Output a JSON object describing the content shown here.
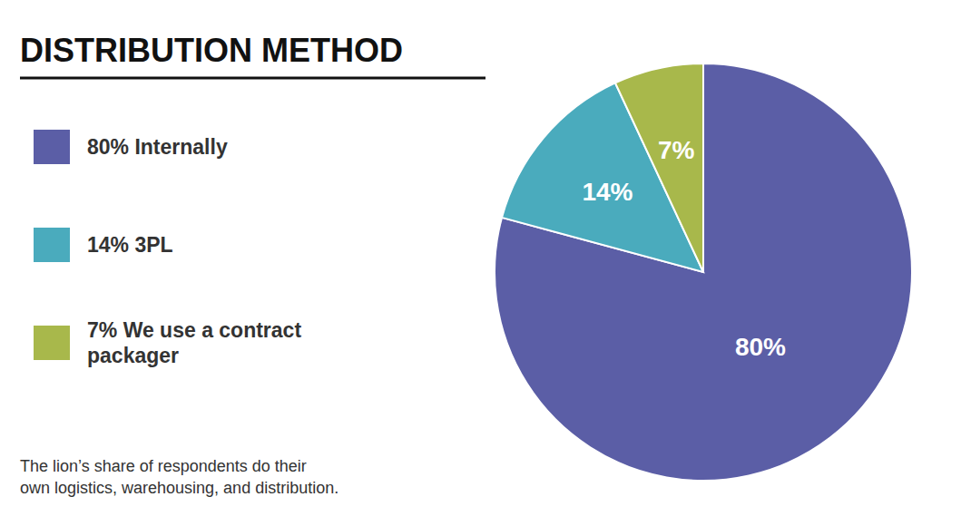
{
  "chart_data": {
    "type": "pie",
    "title": "DISTRIBUTION METHOD",
    "categories": [
      "80% Internally",
      "14% 3PL",
      "7% We use a contract\npackager"
    ],
    "values": [
      80,
      14,
      7
    ],
    "value_labels": [
      "80%",
      "14%",
      "7%"
    ],
    "colors": [
      "#5b5ea6",
      "#4aabbd",
      "#a8b84b"
    ],
    "data_labels": true,
    "legend": "left",
    "annotations": [
      "The lion’s share of respondents do their\nown logistics, warehousing, and distribution."
    ]
  }
}
